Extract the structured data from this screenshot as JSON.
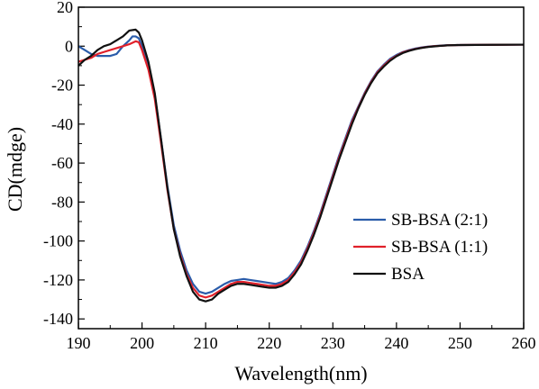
{
  "chart_data": {
    "type": "line",
    "title": "",
    "xlabel": "Wavelength(nm)",
    "ylabel": "CD(mdge)",
    "xlim": [
      190,
      260
    ],
    "ylim": [
      -145,
      20
    ],
    "xticks": [
      190,
      200,
      210,
      220,
      230,
      240,
      250,
      260
    ],
    "yticks": [
      20,
      0,
      -20,
      -40,
      -60,
      -80,
      -100,
      -120,
      -140
    ],
    "legend_position": "lower-right",
    "grid": false,
    "series": [
      {
        "name": "SB-BSA (2:1)",
        "color": "#2a5caa",
        "points": [
          [
            190,
            0
          ],
          [
            191,
            -2
          ],
          [
            192,
            -4
          ],
          [
            193,
            -5
          ],
          [
            194,
            -5
          ],
          [
            195,
            -5
          ],
          [
            196,
            -4
          ],
          [
            197,
            0
          ],
          [
            198,
            3
          ],
          [
            198.5,
            5
          ],
          [
            199,
            5
          ],
          [
            199.5,
            4
          ],
          [
            200,
            0
          ],
          [
            201,
            -10
          ],
          [
            202,
            -25
          ],
          [
            203,
            -48
          ],
          [
            204,
            -72
          ],
          [
            205,
            -92
          ],
          [
            206,
            -105
          ],
          [
            207,
            -115
          ],
          [
            208,
            -122
          ],
          [
            209,
            -126
          ],
          [
            210,
            -127
          ],
          [
            211,
            -126
          ],
          [
            212,
            -124
          ],
          [
            213,
            -122
          ],
          [
            214,
            -120.5
          ],
          [
            215,
            -120
          ],
          [
            216,
            -119.5
          ],
          [
            217,
            -120
          ],
          [
            218,
            -120.5
          ],
          [
            219,
            -121
          ],
          [
            220,
            -121.5
          ],
          [
            221,
            -122
          ],
          [
            222,
            -121
          ],
          [
            223,
            -119
          ],
          [
            224,
            -115
          ],
          [
            225,
            -110
          ],
          [
            226,
            -103
          ],
          [
            227,
            -95
          ],
          [
            228,
            -86
          ],
          [
            229,
            -76
          ],
          [
            230,
            -66
          ],
          [
            231,
            -56
          ],
          [
            232,
            -47
          ],
          [
            233,
            -38
          ],
          [
            234,
            -31
          ],
          [
            235,
            -24
          ],
          [
            236,
            -18
          ],
          [
            237,
            -13
          ],
          [
            238,
            -9.5
          ],
          [
            239,
            -6.5
          ],
          [
            240,
            -4.5
          ],
          [
            241,
            -3
          ],
          [
            242,
            -2
          ],
          [
            243,
            -1.2
          ],
          [
            244,
            -0.6
          ],
          [
            245,
            -0.2
          ],
          [
            246,
            0.1
          ],
          [
            247,
            0.3
          ],
          [
            248,
            0.5
          ],
          [
            250,
            0.6
          ],
          [
            255,
            0.7
          ],
          [
            260,
            0.8
          ]
        ]
      },
      {
        "name": "SB-BSA (1:1)",
        "color": "#e0202a",
        "points": [
          [
            190,
            -8
          ],
          [
            191,
            -7
          ],
          [
            192,
            -6
          ],
          [
            193,
            -4
          ],
          [
            194,
            -3
          ],
          [
            195,
            -2
          ],
          [
            196,
            -1
          ],
          [
            197,
            0
          ],
          [
            198,
            1
          ],
          [
            199,
            2.5
          ],
          [
            199.5,
            2
          ],
          [
            200,
            -2
          ],
          [
            201,
            -12
          ],
          [
            202,
            -27
          ],
          [
            203,
            -50
          ],
          [
            204,
            -74
          ],
          [
            205,
            -94
          ],
          [
            206,
            -107
          ],
          [
            207,
            -117
          ],
          [
            208,
            -124
          ],
          [
            209,
            -128
          ],
          [
            210,
            -129
          ],
          [
            211,
            -128
          ],
          [
            212,
            -126
          ],
          [
            213,
            -124
          ],
          [
            214,
            -122
          ],
          [
            215,
            -121
          ],
          [
            216,
            -121
          ],
          [
            217,
            -121.5
          ],
          [
            218,
            -122
          ],
          [
            219,
            -122.5
          ],
          [
            220,
            -123
          ],
          [
            221,
            -123
          ],
          [
            222,
            -122
          ],
          [
            223,
            -120
          ],
          [
            224,
            -116
          ],
          [
            225,
            -111
          ],
          [
            226,
            -104
          ],
          [
            227,
            -96
          ],
          [
            228,
            -87
          ],
          [
            229,
            -77
          ],
          [
            230,
            -67
          ],
          [
            231,
            -57
          ],
          [
            232,
            -48
          ],
          [
            233,
            -39
          ],
          [
            234,
            -31.5
          ],
          [
            235,
            -24.5
          ],
          [
            236,
            -18.5
          ],
          [
            237,
            -13.5
          ],
          [
            238,
            -10
          ],
          [
            239,
            -7
          ],
          [
            240,
            -5
          ],
          [
            241,
            -3.2
          ],
          [
            242,
            -2.2
          ],
          [
            243,
            -1.4
          ],
          [
            244,
            -0.8
          ],
          [
            245,
            -0.3
          ],
          [
            246,
            0
          ],
          [
            247,
            0.2
          ],
          [
            248,
            0.4
          ],
          [
            250,
            0.6
          ],
          [
            255,
            0.7
          ],
          [
            260,
            0.8
          ]
        ]
      },
      {
        "name": "BSA",
        "color": "#111111",
        "points": [
          [
            190,
            -10
          ],
          [
            191,
            -7
          ],
          [
            192,
            -5
          ],
          [
            193,
            -2
          ],
          [
            194,
            0
          ],
          [
            195,
            1
          ],
          [
            196,
            3
          ],
          [
            197,
            5
          ],
          [
            198,
            8
          ],
          [
            199,
            8.5
          ],
          [
            199.5,
            7
          ],
          [
            200,
            3
          ],
          [
            201,
            -8
          ],
          [
            202,
            -24
          ],
          [
            203,
            -48
          ],
          [
            204,
            -73
          ],
          [
            205,
            -94
          ],
          [
            206,
            -108
          ],
          [
            207,
            -118
          ],
          [
            208,
            -126
          ],
          [
            209,
            -130
          ],
          [
            210,
            -131
          ],
          [
            211,
            -130
          ],
          [
            212,
            -127
          ],
          [
            213,
            -125
          ],
          [
            214,
            -123
          ],
          [
            215,
            -122
          ],
          [
            216,
            -122
          ],
          [
            217,
            -122.5
          ],
          [
            218,
            -123
          ],
          [
            219,
            -123.5
          ],
          [
            220,
            -124
          ],
          [
            221,
            -124
          ],
          [
            222,
            -123
          ],
          [
            223,
            -121
          ],
          [
            224,
            -117
          ],
          [
            225,
            -112
          ],
          [
            226,
            -105
          ],
          [
            227,
            -97
          ],
          [
            228,
            -88
          ],
          [
            229,
            -78
          ],
          [
            230,
            -68
          ],
          [
            231,
            -58
          ],
          [
            232,
            -49
          ],
          [
            233,
            -40
          ],
          [
            234,
            -32
          ],
          [
            235,
            -25
          ],
          [
            236,
            -19
          ],
          [
            237,
            -14
          ],
          [
            238,
            -10.5
          ],
          [
            239,
            -7.5
          ],
          [
            240,
            -5.2
          ],
          [
            241,
            -3.5
          ],
          [
            242,
            -2.4
          ],
          [
            243,
            -1.5
          ],
          [
            244,
            -0.9
          ],
          [
            245,
            -0.4
          ],
          [
            246,
            -0.1
          ],
          [
            247,
            0.2
          ],
          [
            248,
            0.4
          ],
          [
            250,
            0.6
          ],
          [
            255,
            0.7
          ],
          [
            260,
            0.8
          ]
        ]
      }
    ]
  }
}
